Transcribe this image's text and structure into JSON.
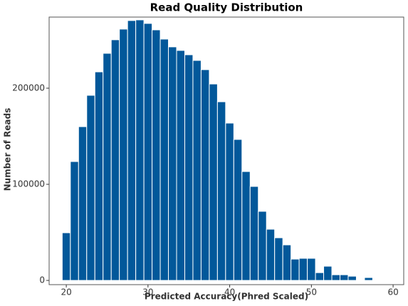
{
  "chart_data": {
    "type": "histogram",
    "title": "Read Quality Distribution",
    "x_label": "Predicted Accuracy(Phred Scaled)",
    "y_label": "Number of Reads",
    "bins": [
      19.5,
      20.5,
      21.5,
      22.5,
      23.5,
      24.5,
      25.5,
      26.5,
      27.5,
      28.5,
      29.5,
      30.5,
      31.5,
      32.5,
      33.5,
      34.5,
      35.5,
      36.5,
      37.5,
      38.5,
      39.5,
      40.5,
      41.5,
      42.5,
      43.5,
      44.5,
      45.5,
      46.5,
      47.5,
      48.5,
      49.5,
      50.5,
      51.5,
      52.5,
      53.5,
      54.5,
      55.5,
      56.5,
      57.5
    ],
    "values": [
      49600,
      123700,
      160000,
      192600,
      217000,
      236300,
      250400,
      261500,
      270400,
      271100,
      267400,
      260700,
      251100,
      243000,
      239300,
      234800,
      228900,
      219300,
      204400,
      185900,
      163700,
      146700,
      113300,
      97800,
      71900,
      53300,
      44400,
      37000,
      22200,
      23000,
      23000,
      8100,
      14800,
      5900,
      5900,
      4400,
      0,
      3000
    ],
    "color": "#02589a",
    "xlim": [
      17.9,
      61.3
    ],
    "ylim": [
      -4400,
      274000
    ],
    "xticks": [
      20,
      30,
      40,
      50,
      60
    ],
    "yticks": [
      0,
      100000,
      200000
    ]
  }
}
